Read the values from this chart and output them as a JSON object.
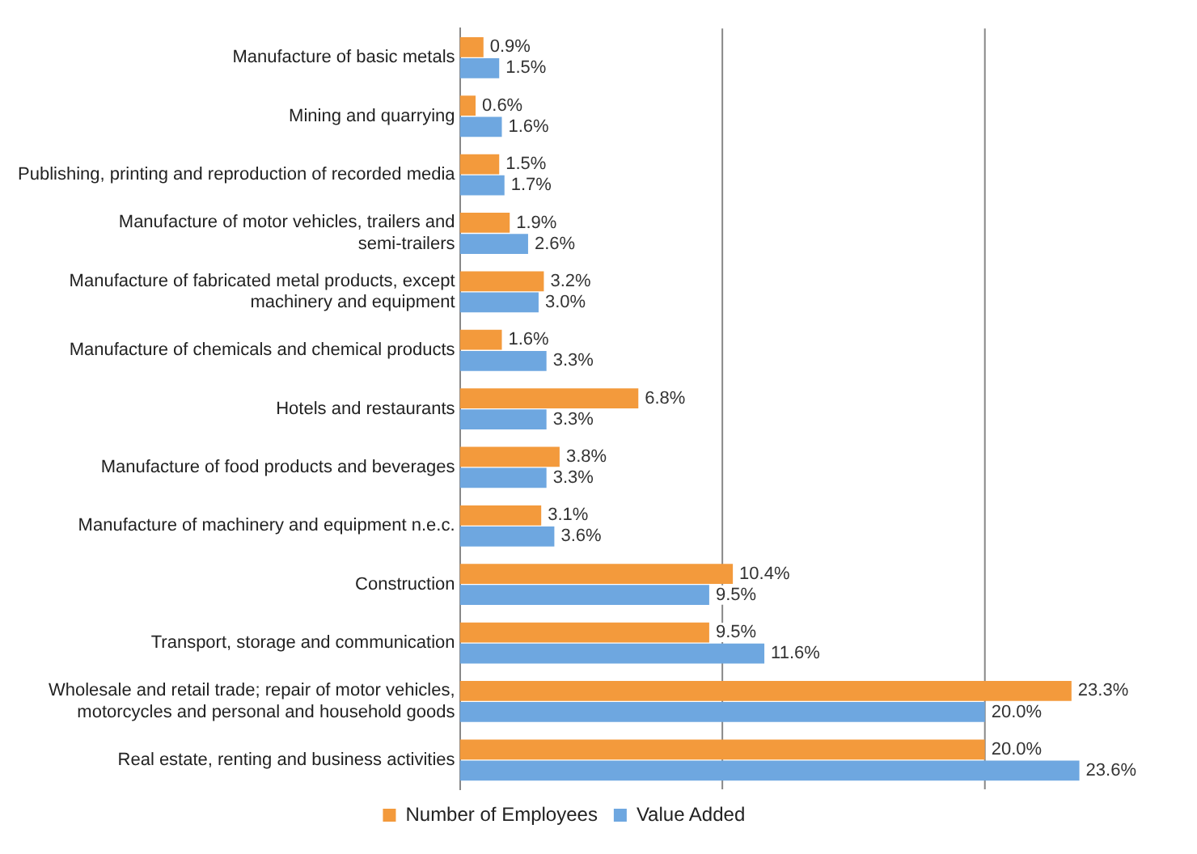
{
  "chart_data": {
    "type": "bar",
    "orientation": "horizontal",
    "categories": [
      "Manufacture of basic metals",
      "Mining and quarrying",
      "Publishing, printing and reproduction of recorded media",
      "Manufacture of motor vehicles, trailers and semi-trailers",
      "Manufacture of fabricated metal products, except machinery and equipment",
      "Manufacture of chemicals and chemical products",
      "Hotels and restaurants",
      "Manufacture of food products and beverages",
      "Manufacture of machinery and equipment n.e.c.",
      "Construction",
      "Transport, storage and communication",
      "Wholesale and retail trade; repair of motor vehicles, motorcycles and personal and household goods",
      "Real estate, renting and business activities"
    ],
    "series": [
      {
        "name": "Number of Employees",
        "color": "#f39a3c",
        "values": [
          0.9,
          0.6,
          1.5,
          1.9,
          3.2,
          1.6,
          6.8,
          3.8,
          3.1,
          10.4,
          9.5,
          23.3,
          20.0
        ],
        "value_labels": [
          "0.9%",
          "0.6%",
          "1.5%",
          "1.9%",
          "3.2%",
          "1.6%",
          "6.8%",
          "3.8%",
          "3.1%",
          "10.4%",
          "9.5%",
          "23.3%",
          "20.0%"
        ]
      },
      {
        "name": "Value Added",
        "color": "#6ea7e0",
        "values": [
          1.5,
          1.6,
          1.7,
          2.6,
          3.0,
          3.3,
          3.3,
          3.3,
          3.6,
          9.5,
          11.6,
          20.0,
          23.6
        ],
        "value_labels": [
          "1.5%",
          "1.6%",
          "1.7%",
          "2.6%",
          "3.0%",
          "3.3%",
          "3.3%",
          "3.3%",
          "3.6%",
          "9.5%",
          "11.6%",
          "20.0%",
          "23.6%"
        ]
      }
    ],
    "ref_lines": [
      {
        "axis": "x",
        "value": 10,
        "color": "#888888"
      },
      {
        "axis": "x",
        "value": 20,
        "color": "#888888"
      }
    ],
    "tick_labels": "y",
    "legend": "bottom"
  }
}
